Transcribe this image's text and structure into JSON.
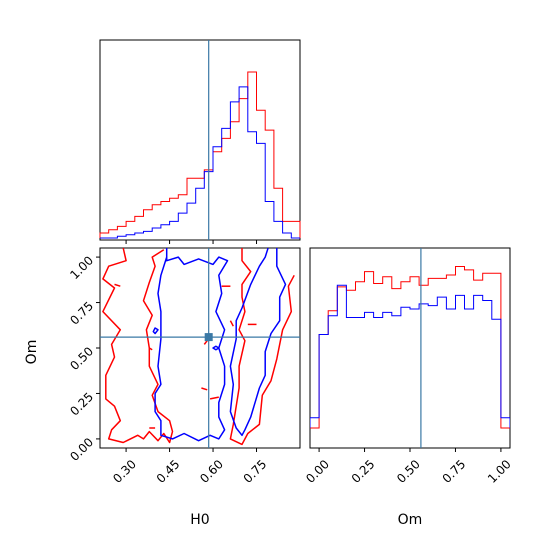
{
  "chart_data": {
    "type": "corner",
    "parameters": [
      "H0",
      "Om"
    ],
    "truths": {
      "H0": 0.585,
      "Om": 0.56
    },
    "colors": {
      "red": "#ff0000",
      "blue": "#0000ff",
      "truth": "#3a78a5"
    },
    "axes": {
      "H0": {
        "range": [
          0.21,
          0.9
        ],
        "ticks": [
          "0.30",
          "0.45",
          "0.60",
          "0.75"
        ],
        "tick_values": [
          0.3,
          0.45,
          0.6,
          0.75
        ]
      },
      "Om": {
        "range": [
          -0.05,
          1.05
        ],
        "ticks": [
          "0.00",
          "0.25",
          "0.50",
          "0.75",
          "1.00"
        ],
        "tick_values": [
          0.0,
          0.25,
          0.5,
          0.75,
          1.0
        ]
      }
    },
    "hist_H0": {
      "bins": [
        0.21,
        0.24,
        0.27,
        0.3,
        0.33,
        0.36,
        0.39,
        0.42,
        0.45,
        0.48,
        0.51,
        0.54,
        0.57,
        0.6,
        0.63,
        0.66,
        0.69,
        0.72,
        0.75,
        0.78,
        0.81,
        0.84,
        0.87,
        0.9
      ],
      "red": [
        0.03,
        0.05,
        0.07,
        0.1,
        0.13,
        0.17,
        0.2,
        0.22,
        0.24,
        0.26,
        0.36,
        0.36,
        0.41,
        0.52,
        0.6,
        0.7,
        0.84,
        1.0,
        0.77,
        0.65,
        0.3,
        0.1,
        0.1
      ],
      "blue": [
        0.0,
        0.0,
        0.01,
        0.02,
        0.03,
        0.04,
        0.06,
        0.08,
        0.1,
        0.15,
        0.21,
        0.3,
        0.4,
        0.55,
        0.66,
        0.82,
        0.91,
        0.64,
        0.57,
        0.22,
        0.1,
        0.03,
        0.0
      ]
    },
    "hist_Om": {
      "bins": [
        -0.05,
        0.0,
        0.05,
        0.1,
        0.15,
        0.2,
        0.25,
        0.3,
        0.35,
        0.4,
        0.45,
        0.5,
        0.55,
        0.6,
        0.65,
        0.7,
        0.75,
        0.8,
        0.85,
        0.9,
        0.95,
        1.0,
        1.05
      ],
      "red": [
        0.0,
        0.55,
        0.69,
        0.83,
        0.81,
        0.86,
        0.92,
        0.85,
        0.89,
        0.82,
        0.86,
        0.89,
        0.84,
        0.88,
        0.88,
        0.9,
        0.95,
        0.93,
        0.87,
        0.91,
        0.91,
        0.0
      ],
      "blue": [
        0.06,
        0.55,
        0.66,
        0.84,
        0.65,
        0.65,
        0.68,
        0.65,
        0.68,
        0.66,
        0.71,
        0.7,
        0.73,
        0.72,
        0.77,
        0.7,
        0.78,
        0.7,
        0.78,
        0.75,
        0.64,
        0.06
      ]
    },
    "contours": {
      "red_left": [
        [
          0.29,
          1.05
        ],
        [
          0.3,
          0.98
        ],
        [
          0.24,
          0.95
        ],
        [
          0.22,
          0.88
        ],
        [
          0.26,
          0.83
        ],
        [
          0.22,
          0.7
        ],
        [
          0.28,
          0.6
        ],
        [
          0.25,
          0.52
        ],
        [
          0.26,
          0.45
        ],
        [
          0.23,
          0.35
        ],
        [
          0.23,
          0.22
        ],
        [
          0.26,
          0.18
        ],
        [
          0.28,
          0.1
        ],
        [
          0.25,
          0.05
        ],
        [
          0.24,
          0.0
        ],
        [
          0.29,
          -0.02
        ],
        [
          0.34,
          0.02
        ],
        [
          0.36,
          0.0
        ],
        [
          0.38,
          0.04
        ],
        [
          0.41,
          -0.01
        ],
        [
          0.43,
          0.03
        ],
        [
          0.45,
          -0.02
        ],
        [
          0.46,
          0.04
        ],
        [
          0.45,
          0.1
        ],
        [
          0.41,
          0.15
        ],
        [
          0.39,
          0.24
        ],
        [
          0.41,
          0.3
        ],
        [
          0.38,
          0.4
        ],
        [
          0.38,
          0.5
        ],
        [
          0.37,
          0.6
        ],
        [
          0.39,
          0.68
        ],
        [
          0.36,
          0.76
        ],
        [
          0.38,
          0.86
        ],
        [
          0.4,
          0.95
        ],
        [
          0.39,
          1.0
        ],
        [
          0.43,
          1.04
        ]
      ],
      "red_right": [
        [
          0.7,
          1.05
        ],
        [
          0.7,
          0.98
        ],
        [
          0.73,
          0.92
        ],
        [
          0.7,
          0.85
        ],
        [
          0.7,
          0.78
        ],
        [
          0.71,
          0.7
        ],
        [
          0.69,
          0.6
        ],
        [
          0.71,
          0.54
        ],
        [
          0.69,
          0.4
        ],
        [
          0.69,
          0.28
        ],
        [
          0.68,
          0.18
        ],
        [
          0.67,
          0.08
        ],
        [
          0.66,
          0.0
        ],
        [
          0.7,
          -0.03
        ],
        [
          0.72,
          0.03
        ],
        [
          0.76,
          0.08
        ],
        [
          0.77,
          0.24
        ],
        [
          0.8,
          0.32
        ],
        [
          0.82,
          0.44
        ],
        [
          0.84,
          0.6
        ],
        [
          0.87,
          0.7
        ],
        [
          0.86,
          0.84
        ],
        [
          0.88,
          0.9
        ]
      ],
      "blue_left": [
        [
          0.44,
          1.05
        ],
        [
          0.44,
          0.98
        ],
        [
          0.48,
          1.0
        ],
        [
          0.5,
          0.96
        ],
        [
          0.55,
          0.99
        ],
        [
          0.6,
          0.96
        ],
        [
          0.62,
          1.0
        ],
        [
          0.65,
          0.98
        ],
        [
          0.62,
          0.9
        ],
        [
          0.63,
          0.8
        ],
        [
          0.61,
          0.7
        ],
        [
          0.64,
          0.6
        ],
        [
          0.62,
          0.5
        ],
        [
          0.64,
          0.4
        ],
        [
          0.64,
          0.3
        ],
        [
          0.62,
          0.2
        ],
        [
          0.62,
          0.12
        ],
        [
          0.64,
          0.05
        ],
        [
          0.62,
          0.0
        ],
        [
          0.59,
          0.02
        ],
        [
          0.55,
          -0.01
        ],
        [
          0.5,
          0.03
        ],
        [
          0.46,
          0.0
        ],
        [
          0.42,
          0.02
        ],
        [
          0.42,
          0.1
        ],
        [
          0.4,
          0.15
        ],
        [
          0.4,
          0.25
        ],
        [
          0.42,
          0.3
        ],
        [
          0.41,
          0.4
        ],
        [
          0.42,
          0.55
        ],
        [
          0.42,
          0.7
        ],
        [
          0.41,
          0.8
        ],
        [
          0.42,
          0.9
        ],
        [
          0.44,
          1.0
        ]
      ],
      "blue_right": [
        [
          0.82,
          1.05
        ],
        [
          0.82,
          0.95
        ],
        [
          0.85,
          0.85
        ],
        [
          0.83,
          0.78
        ],
        [
          0.83,
          0.65
        ],
        [
          0.8,
          0.58
        ],
        [
          0.78,
          0.48
        ],
        [
          0.78,
          0.35
        ],
        [
          0.76,
          0.28
        ],
        [
          0.73,
          0.12
        ],
        [
          0.71,
          0.05
        ],
        [
          0.7,
          0.02
        ],
        [
          0.68,
          0.06
        ],
        [
          0.66,
          0.15
        ],
        [
          0.67,
          0.3
        ],
        [
          0.66,
          0.4
        ],
        [
          0.68,
          0.55
        ],
        [
          0.68,
          0.65
        ],
        [
          0.7,
          0.72
        ],
        [
          0.73,
          0.85
        ],
        [
          0.76,
          0.95
        ],
        [
          0.78,
          1.0
        ],
        [
          0.79,
          1.05
        ]
      ],
      "blue_blob": [
        [
          0.394,
          0.59
        ],
        [
          0.4,
          0.61
        ],
        [
          0.41,
          0.6
        ],
        [
          0.4,
          0.58
        ],
        [
          0.394,
          0.59
        ]
      ],
      "blue_dot": [
        [
          0.6,
          0.5
        ],
        [
          0.61,
          0.51
        ],
        [
          0.62,
          0.5
        ],
        [
          0.61,
          0.49
        ],
        [
          0.6,
          0.5
        ]
      ],
      "red_marks": [
        [
          [
            0.26,
            0.85
          ],
          [
            0.28,
            0.84
          ]
        ],
        [
          [
            0.38,
            0.5
          ],
          [
            0.39,
            0.49
          ]
        ],
        [
          [
            0.38,
            0.06
          ],
          [
            0.4,
            0.06
          ]
        ],
        [
          [
            0.63,
            0.84
          ],
          [
            0.66,
            0.84
          ]
        ],
        [
          [
            0.66,
            0.65
          ],
          [
            0.67,
            0.62
          ]
        ],
        [
          [
            0.72,
            0.63
          ],
          [
            0.75,
            0.63
          ]
        ],
        [
          [
            0.57,
            0.52
          ],
          [
            0.58,
            0.54
          ]
        ],
        [
          [
            0.56,
            0.28
          ],
          [
            0.58,
            0.27
          ]
        ],
        [
          [
            0.59,
            0.22
          ],
          [
            0.62,
            0.23
          ]
        ]
      ]
    },
    "xlabel_left": "H0",
    "xlabel_right": "Om",
    "ylabel": "Om"
  }
}
